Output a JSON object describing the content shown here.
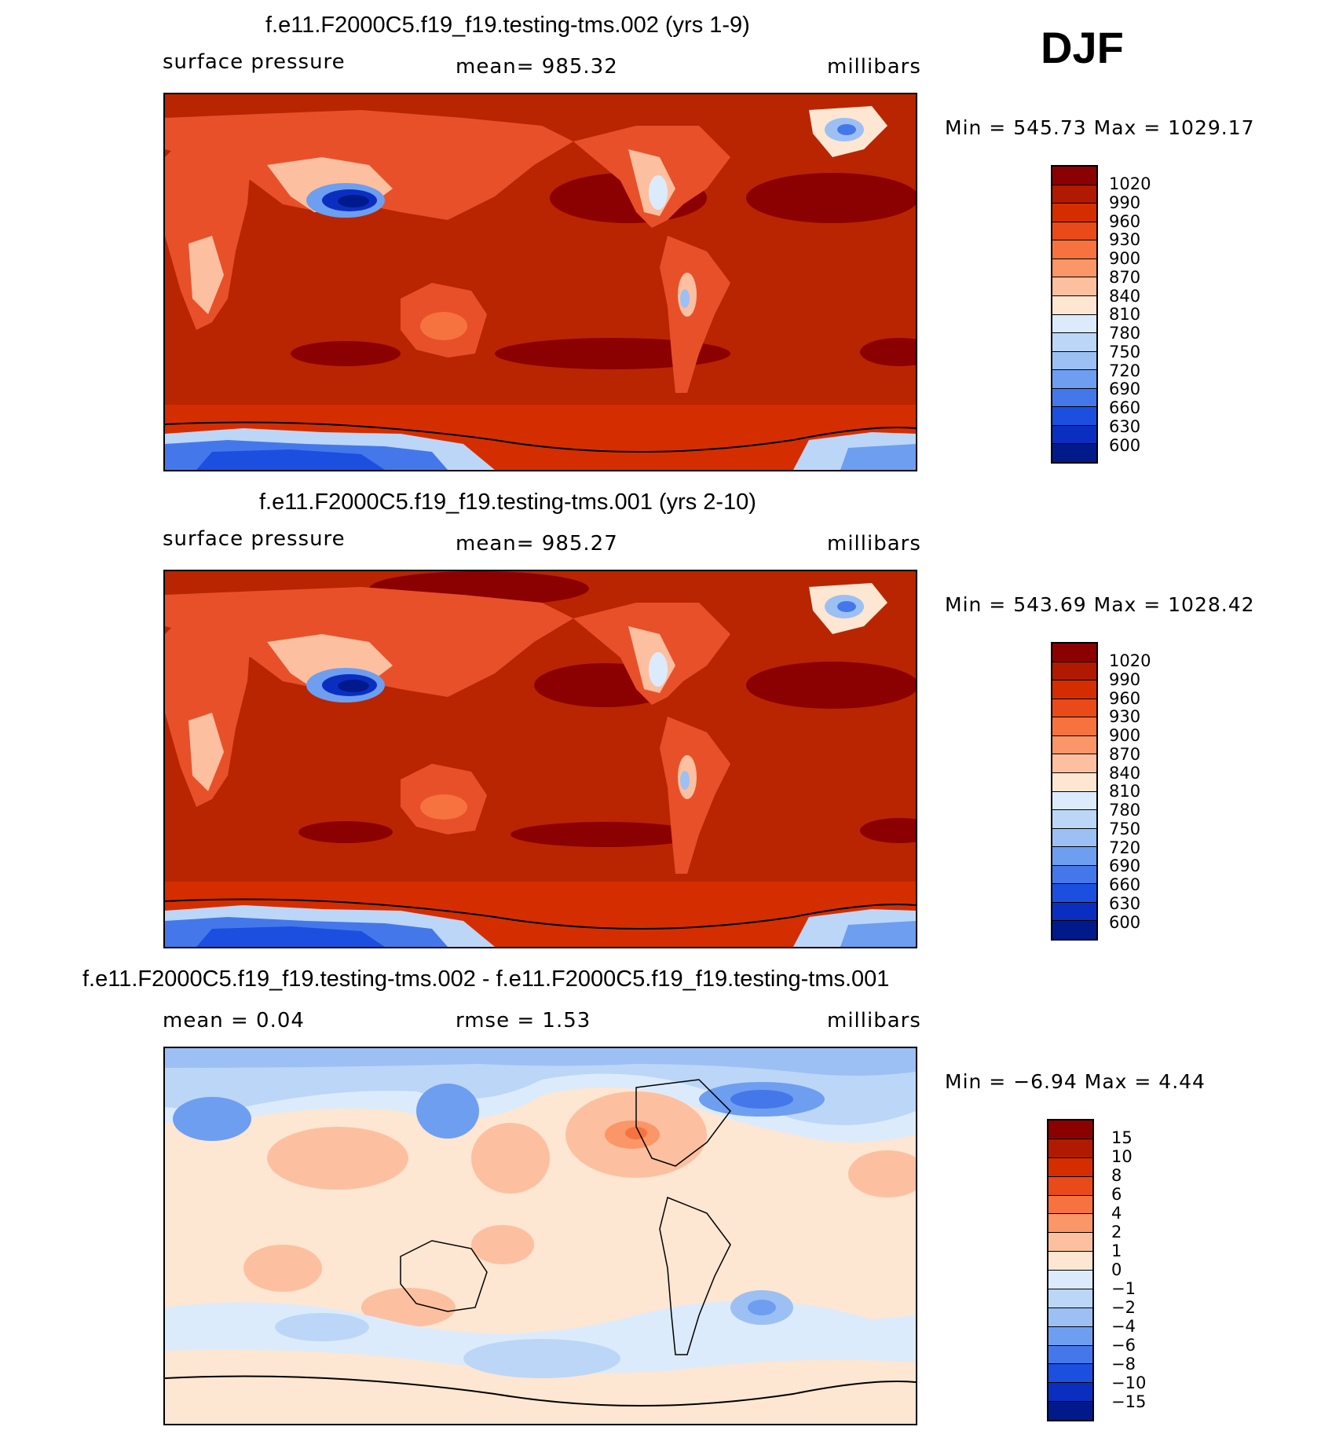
{
  "season": "DJF",
  "panels": [
    {
      "title": "f.e11.F2000C5.f19_f19.testing-tms.002 (yrs 1-9)",
      "left_label": "surface  pressure",
      "center_label": "mean=  985.32",
      "right_label": "millibars",
      "minmax": "Min  =  545.73  Max  =  1029.17",
      "colorbar_labels": [
        "1020",
        "990",
        "960",
        "930",
        "900",
        "870",
        "840",
        "810",
        "780",
        "750",
        "720",
        "690",
        "660",
        "630",
        "600"
      ],
      "colorbar_colors": [
        "#8b0000",
        "#b01a00",
        "#d42e00",
        "#e84a1a",
        "#f6733f",
        "#fa9668",
        "#fcc0a0",
        "#fde6d2",
        "#dcebfb",
        "#bcd6f8",
        "#9cc0f4",
        "#6e9ef0",
        "#4478ea",
        "#1c4fe0",
        "#0a2fc0",
        "#001a8c"
      ]
    },
    {
      "title": "f.e11.F2000C5.f19_f19.testing-tms.001 (yrs 2-10)",
      "left_label": "surface  pressure",
      "center_label": "mean=  985.27",
      "right_label": "millibars",
      "minmax": "Min  =  543.69  Max  =  1028.42",
      "colorbar_labels": [
        "1020",
        "990",
        "960",
        "930",
        "900",
        "870",
        "840",
        "810",
        "780",
        "750",
        "720",
        "690",
        "660",
        "630",
        "600"
      ],
      "colorbar_colors": [
        "#8b0000",
        "#b01a00",
        "#d42e00",
        "#e84a1a",
        "#f6733f",
        "#fa9668",
        "#fcc0a0",
        "#fde6d2",
        "#dcebfb",
        "#bcd6f8",
        "#9cc0f4",
        "#6e9ef0",
        "#4478ea",
        "#1c4fe0",
        "#0a2fc0",
        "#001a8c"
      ]
    },
    {
      "title": "f.e11.F2000C5.f19_f19.testing-tms.002 - f.e11.F2000C5.f19_f19.testing-tms.001",
      "left_label": "mean  =     0.04",
      "center_label": "rmse  =     1.53",
      "right_label": "millibars",
      "minmax": "Min  =   −6.94  Max  =     4.44",
      "colorbar_labels": [
        "15",
        "10",
        "8",
        "6",
        "4",
        "2",
        "1",
        "0",
        "−1",
        "−2",
        "−4",
        "−6",
        "−8",
        "−10",
        "−15"
      ],
      "colorbar_colors": [
        "#8b0000",
        "#b01a00",
        "#d42e00",
        "#e84a1a",
        "#f6733f",
        "#fa9668",
        "#fcc0a0",
        "#fde6d2",
        "#dcebfb",
        "#bcd6f8",
        "#9cc0f4",
        "#6e9ef0",
        "#4478ea",
        "#1c4fe0",
        "#0a2fc0",
        "#001a8c"
      ]
    }
  ],
  "colors": {
    "ocean_high": "#b82500",
    "land_mid": "#e8502a",
    "diff_positive": "#fde6d2",
    "diff_negative": "#dcebfb"
  }
}
